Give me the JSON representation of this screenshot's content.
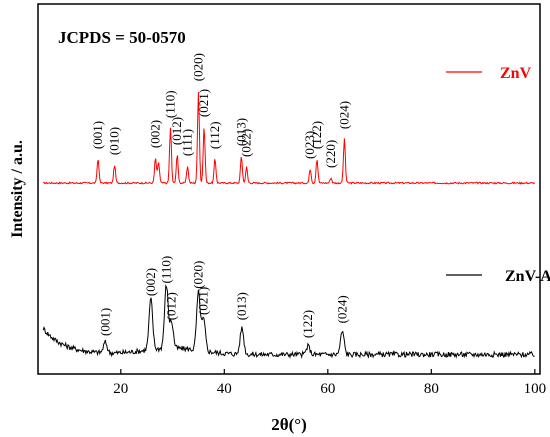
{
  "chart_data": {
    "type": "line",
    "title": "JCPDS = 50-0570",
    "xlabel": "2θ(°)",
    "ylabel": "Intensity / a.u.",
    "xlim": [
      4,
      101
    ],
    "x_ticks": [
      20,
      40,
      60,
      80,
      100
    ],
    "yticks_shown": false,
    "grid": false,
    "legend_position": "right",
    "series": [
      {
        "name": "ZnV",
        "color": "#ff0000",
        "baseline": 0.03,
        "noise": 0.008,
        "peaks": [
          {
            "x": 15.6,
            "h": 0.24,
            "label": "(001)"
          },
          {
            "x": 18.8,
            "h": 0.18,
            "label": "(010)"
          },
          {
            "x": 26.7,
            "h": 0.25,
            "label": "(002)"
          },
          {
            "x": 27.3,
            "h": 0.21
          },
          {
            "x": 29.6,
            "h": 0.55,
            "label": "(110)"
          },
          {
            "x": 30.9,
            "h": 0.28,
            "label": "(012)"
          },
          {
            "x": 32.9,
            "h": 0.17,
            "label": "(111)"
          },
          {
            "x": 35.0,
            "h": 0.92,
            "label": "(020)"
          },
          {
            "x": 36.1,
            "h": 0.56,
            "label": "(021)"
          },
          {
            "x": 38.2,
            "h": 0.24,
            "label": "(112)"
          },
          {
            "x": 43.3,
            "h": 0.27,
            "label": "(013)"
          },
          {
            "x": 44.3,
            "h": 0.16,
            "label": "(022)"
          },
          {
            "x": 56.6,
            "h": 0.14,
            "label": "(023)"
          },
          {
            "x": 57.9,
            "h": 0.24,
            "label": "(122)"
          },
          {
            "x": 60.6,
            "h": 0.05,
            "label": "(220)"
          },
          {
            "x": 63.2,
            "h": 0.44,
            "label": "(024)"
          }
        ]
      },
      {
        "name": "ZnV-Ag",
        "color": "#000000",
        "baseline": 0.1,
        "noise": 0.025,
        "peaks": [
          {
            "x": 17.0,
            "h": 0.1,
            "label": "(001)"
          },
          {
            "x": 25.8,
            "h": 0.48,
            "label": "(002)"
          },
          {
            "x": 28.8,
            "h": 0.6,
            "label": "(110)"
          },
          {
            "x": 29.8,
            "h": 0.25,
            "label": "(012)"
          },
          {
            "x": 35.0,
            "h": 0.55,
            "label": "(020)"
          },
          {
            "x": 36.0,
            "h": 0.3,
            "label": "(021)"
          },
          {
            "x": 43.4,
            "h": 0.25,
            "label": "(013)"
          },
          {
            "x": 56.2,
            "h": 0.08,
            "label": "(122)"
          },
          {
            "x": 62.8,
            "h": 0.22,
            "label": "(024)"
          }
        ]
      }
    ]
  }
}
